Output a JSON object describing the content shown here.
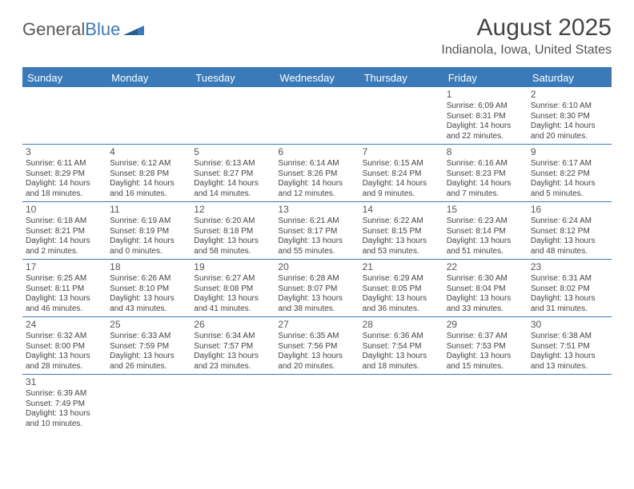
{
  "brand": {
    "name1": "General",
    "name2": "Blue"
  },
  "title": "August 2025",
  "location": "Indianola, Iowa, United States",
  "colors": {
    "accent": "#3a7ab8",
    "text": "#444444",
    "header_text": "#ffffff",
    "background": "#ffffff"
  },
  "day_labels": [
    "Sunday",
    "Monday",
    "Tuesday",
    "Wednesday",
    "Thursday",
    "Friday",
    "Saturday"
  ],
  "weeks": [
    [
      {},
      {},
      {},
      {},
      {},
      {
        "n": "1",
        "sr": "Sunrise: 6:09 AM",
        "ss": "Sunset: 8:31 PM",
        "dl": "Daylight: 14 hours and 22 minutes."
      },
      {
        "n": "2",
        "sr": "Sunrise: 6:10 AM",
        "ss": "Sunset: 8:30 PM",
        "dl": "Daylight: 14 hours and 20 minutes."
      }
    ],
    [
      {
        "n": "3",
        "sr": "Sunrise: 6:11 AM",
        "ss": "Sunset: 8:29 PM",
        "dl": "Daylight: 14 hours and 18 minutes."
      },
      {
        "n": "4",
        "sr": "Sunrise: 6:12 AM",
        "ss": "Sunset: 8:28 PM",
        "dl": "Daylight: 14 hours and 16 minutes."
      },
      {
        "n": "5",
        "sr": "Sunrise: 6:13 AM",
        "ss": "Sunset: 8:27 PM",
        "dl": "Daylight: 14 hours and 14 minutes."
      },
      {
        "n": "6",
        "sr": "Sunrise: 6:14 AM",
        "ss": "Sunset: 8:26 PM",
        "dl": "Daylight: 14 hours and 12 minutes."
      },
      {
        "n": "7",
        "sr": "Sunrise: 6:15 AM",
        "ss": "Sunset: 8:24 PM",
        "dl": "Daylight: 14 hours and 9 minutes."
      },
      {
        "n": "8",
        "sr": "Sunrise: 6:16 AM",
        "ss": "Sunset: 8:23 PM",
        "dl": "Daylight: 14 hours and 7 minutes."
      },
      {
        "n": "9",
        "sr": "Sunrise: 6:17 AM",
        "ss": "Sunset: 8:22 PM",
        "dl": "Daylight: 14 hours and 5 minutes."
      }
    ],
    [
      {
        "n": "10",
        "sr": "Sunrise: 6:18 AM",
        "ss": "Sunset: 8:21 PM",
        "dl": "Daylight: 14 hours and 2 minutes."
      },
      {
        "n": "11",
        "sr": "Sunrise: 6:19 AM",
        "ss": "Sunset: 8:19 PM",
        "dl": "Daylight: 14 hours and 0 minutes."
      },
      {
        "n": "12",
        "sr": "Sunrise: 6:20 AM",
        "ss": "Sunset: 8:18 PM",
        "dl": "Daylight: 13 hours and 58 minutes."
      },
      {
        "n": "13",
        "sr": "Sunrise: 6:21 AM",
        "ss": "Sunset: 8:17 PM",
        "dl": "Daylight: 13 hours and 55 minutes."
      },
      {
        "n": "14",
        "sr": "Sunrise: 6:22 AM",
        "ss": "Sunset: 8:15 PM",
        "dl": "Daylight: 13 hours and 53 minutes."
      },
      {
        "n": "15",
        "sr": "Sunrise: 6:23 AM",
        "ss": "Sunset: 8:14 PM",
        "dl": "Daylight: 13 hours and 51 minutes."
      },
      {
        "n": "16",
        "sr": "Sunrise: 6:24 AM",
        "ss": "Sunset: 8:12 PM",
        "dl": "Daylight: 13 hours and 48 minutes."
      }
    ],
    [
      {
        "n": "17",
        "sr": "Sunrise: 6:25 AM",
        "ss": "Sunset: 8:11 PM",
        "dl": "Daylight: 13 hours and 46 minutes."
      },
      {
        "n": "18",
        "sr": "Sunrise: 6:26 AM",
        "ss": "Sunset: 8:10 PM",
        "dl": "Daylight: 13 hours and 43 minutes."
      },
      {
        "n": "19",
        "sr": "Sunrise: 6:27 AM",
        "ss": "Sunset: 8:08 PM",
        "dl": "Daylight: 13 hours and 41 minutes."
      },
      {
        "n": "20",
        "sr": "Sunrise: 6:28 AM",
        "ss": "Sunset: 8:07 PM",
        "dl": "Daylight: 13 hours and 38 minutes."
      },
      {
        "n": "21",
        "sr": "Sunrise: 6:29 AM",
        "ss": "Sunset: 8:05 PM",
        "dl": "Daylight: 13 hours and 36 minutes."
      },
      {
        "n": "22",
        "sr": "Sunrise: 6:30 AM",
        "ss": "Sunset: 8:04 PM",
        "dl": "Daylight: 13 hours and 33 minutes."
      },
      {
        "n": "23",
        "sr": "Sunrise: 6:31 AM",
        "ss": "Sunset: 8:02 PM",
        "dl": "Daylight: 13 hours and 31 minutes."
      }
    ],
    [
      {
        "n": "24",
        "sr": "Sunrise: 6:32 AM",
        "ss": "Sunset: 8:00 PM",
        "dl": "Daylight: 13 hours and 28 minutes."
      },
      {
        "n": "25",
        "sr": "Sunrise: 6:33 AM",
        "ss": "Sunset: 7:59 PM",
        "dl": "Daylight: 13 hours and 26 minutes."
      },
      {
        "n": "26",
        "sr": "Sunrise: 6:34 AM",
        "ss": "Sunset: 7:57 PM",
        "dl": "Daylight: 13 hours and 23 minutes."
      },
      {
        "n": "27",
        "sr": "Sunrise: 6:35 AM",
        "ss": "Sunset: 7:56 PM",
        "dl": "Daylight: 13 hours and 20 minutes."
      },
      {
        "n": "28",
        "sr": "Sunrise: 6:36 AM",
        "ss": "Sunset: 7:54 PM",
        "dl": "Daylight: 13 hours and 18 minutes."
      },
      {
        "n": "29",
        "sr": "Sunrise: 6:37 AM",
        "ss": "Sunset: 7:53 PM",
        "dl": "Daylight: 13 hours and 15 minutes."
      },
      {
        "n": "30",
        "sr": "Sunrise: 6:38 AM",
        "ss": "Sunset: 7:51 PM",
        "dl": "Daylight: 13 hours and 13 minutes."
      }
    ],
    [
      {
        "n": "31",
        "sr": "Sunrise: 6:39 AM",
        "ss": "Sunset: 7:49 PM",
        "dl": "Daylight: 13 hours and 10 minutes."
      },
      {},
      {},
      {},
      {},
      {},
      {}
    ]
  ]
}
